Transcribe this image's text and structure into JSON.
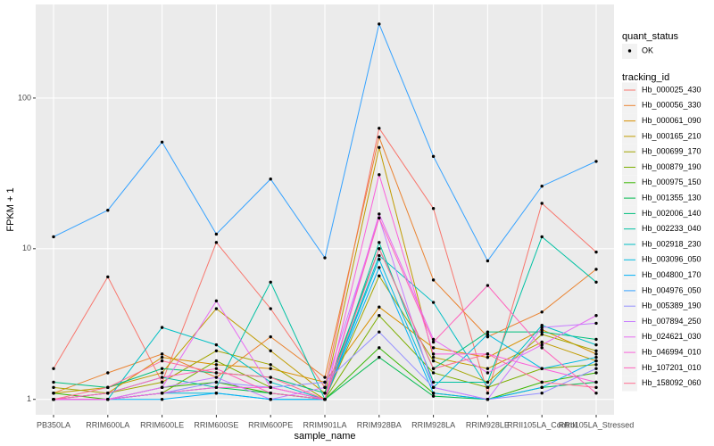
{
  "chart_data": {
    "type": "line",
    "x_label": "sample_name",
    "y_label": "FPKM + 1",
    "log_y": true,
    "grid": true,
    "ylim": [
      0.79,
      418
    ],
    "yticks": [
      1,
      10,
      100
    ],
    "categories": [
      "PB350LA",
      "RRIM600LA",
      "RRIM600LE",
      "RRIM600SE",
      "RRIM600PE",
      "RRIM901LA",
      "RRIM928BA",
      "RRIM928LA",
      "RRIM928LE",
      "RRII105LA_Control",
      "RRII105LA_Stressed"
    ],
    "point_legend": {
      "title": "quant_status",
      "labels": [
        "OK"
      ]
    },
    "legend_title": "tracking_id",
    "legend_position": "right",
    "series": [
      {
        "name": "Hb_000025_430",
        "color": "#F8766D",
        "values": [
          1.6,
          6.5,
          1.3,
          11,
          4,
          1.2,
          63,
          18.5,
          1.1,
          20,
          9.5
        ]
      },
      {
        "name": "Hb_000056_330",
        "color": "#EA8331",
        "values": [
          1.1,
          1.5,
          2.0,
          1.4,
          2.6,
          1.4,
          55,
          6.2,
          2.6,
          3.8,
          7.3
        ]
      },
      {
        "name": "Hb_000061_090",
        "color": "#D89000",
        "values": [
          1.0,
          1.1,
          1.9,
          1.7,
          1.6,
          1.3,
          4.1,
          2.2,
          1.9,
          2.9,
          2.0
        ]
      },
      {
        "name": "Hb_000165_210",
        "color": "#C09B00",
        "values": [
          1.1,
          1.2,
          1.5,
          4.0,
          2.1,
          1.1,
          47,
          1.9,
          1.6,
          2.4,
          1.8
        ]
      },
      {
        "name": "Hb_000699_170",
        "color": "#A3A500",
        "values": [
          1.2,
          1.1,
          1.3,
          2.1,
          1.7,
          1.0,
          6.6,
          1.8,
          1.3,
          2.7,
          2.1
        ]
      },
      {
        "name": "Hb_000879_190",
        "color": "#7CAE00",
        "values": [
          1.0,
          1.0,
          1.1,
          1.8,
          1.2,
          1.0,
          3.6,
          1.5,
          1.2,
          1.6,
          1.7
        ]
      },
      {
        "name": "Hb_000975_150",
        "color": "#39B600",
        "values": [
          1.1,
          1.0,
          1.2,
          1.3,
          1.1,
          1.0,
          2.2,
          1.1,
          1.0,
          1.3,
          1.5
        ]
      },
      {
        "name": "Hb_001355_130",
        "color": "#00BB4E",
        "values": [
          1.0,
          1.0,
          1.1,
          1.2,
          1.1,
          1.0,
          1.9,
          1.05,
          1.0,
          1.2,
          1.3
        ]
      },
      {
        "name": "Hb_002006_140",
        "color": "#00BF7D",
        "values": [
          1.3,
          1.2,
          1.6,
          1.5,
          1.4,
          1.1,
          10,
          1.6,
          2.8,
          2.8,
          2.5
        ]
      },
      {
        "name": "Hb_002233_040",
        "color": "#00C1A3",
        "values": [
          1.0,
          1.1,
          1.4,
          1.2,
          6.0,
          1.0,
          11,
          1.3,
          1.3,
          12,
          6.0
        ]
      },
      {
        "name": "Hb_002918_230",
        "color": "#00BFC4",
        "values": [
          1.0,
          1.0,
          3.0,
          2.3,
          1.3,
          1.0,
          9,
          4.4,
          1.2,
          3.1,
          2.3
        ]
      },
      {
        "name": "Hb_003096_050",
        "color": "#00BAE0",
        "values": [
          1.0,
          1.0,
          1.1,
          1.1,
          1.0,
          1.0,
          8.5,
          1.2,
          2.7,
          1.6,
          1.9
        ]
      },
      {
        "name": "Hb_004800_170",
        "color": "#00B0F6",
        "values": [
          1.0,
          1.0,
          1.0,
          1.1,
          1.0,
          1.0,
          7.5,
          1.1,
          1.0,
          1.2,
          1.8
        ]
      },
      {
        "name": "Hb_004976_050",
        "color": "#35A2FF",
        "values": [
          12,
          18,
          51,
          12.5,
          29,
          8.7,
          310,
          41,
          8.3,
          26,
          38
        ]
      },
      {
        "name": "Hb_005389_190",
        "color": "#9590FF",
        "values": [
          1.0,
          1.0,
          1.1,
          1.3,
          1.2,
          1.3,
          2.8,
          1.2,
          1.0,
          1.1,
          1.6
        ]
      },
      {
        "name": "Hb_007894_250",
        "color": "#C77CFF",
        "values": [
          1.0,
          1.0,
          1.2,
          1.4,
          1.0,
          1.2,
          16,
          1.2,
          1.0,
          3.0,
          3.2
        ]
      },
      {
        "name": "Hb_024621_030",
        "color": "#E76BF3",
        "values": [
          1.0,
          1.0,
          1.2,
          4.5,
          1.2,
          1.0,
          17,
          2.5,
          1.5,
          2.3,
          3.6
        ]
      },
      {
        "name": "Hb_046994_010",
        "color": "#FA62DB",
        "values": [
          1.0,
          1.0,
          1.1,
          1.2,
          1.2,
          1.0,
          31,
          2.0,
          2.0,
          1.6,
          1.3
        ]
      },
      {
        "name": "Hb_107201_010",
        "color": "#FF62BC",
        "values": [
          1.0,
          1.1,
          1.4,
          1.6,
          1.1,
          1.0,
          16,
          2.4,
          5.7,
          2.2,
          1.1
        ]
      },
      {
        "name": "Hb_158092_060",
        "color": "#FF6C91",
        "values": [
          1.0,
          1.2,
          1.8,
          1.5,
          1.4,
          1.0,
          10,
          1.6,
          2.0,
          1.3,
          1.2
        ]
      }
    ]
  }
}
